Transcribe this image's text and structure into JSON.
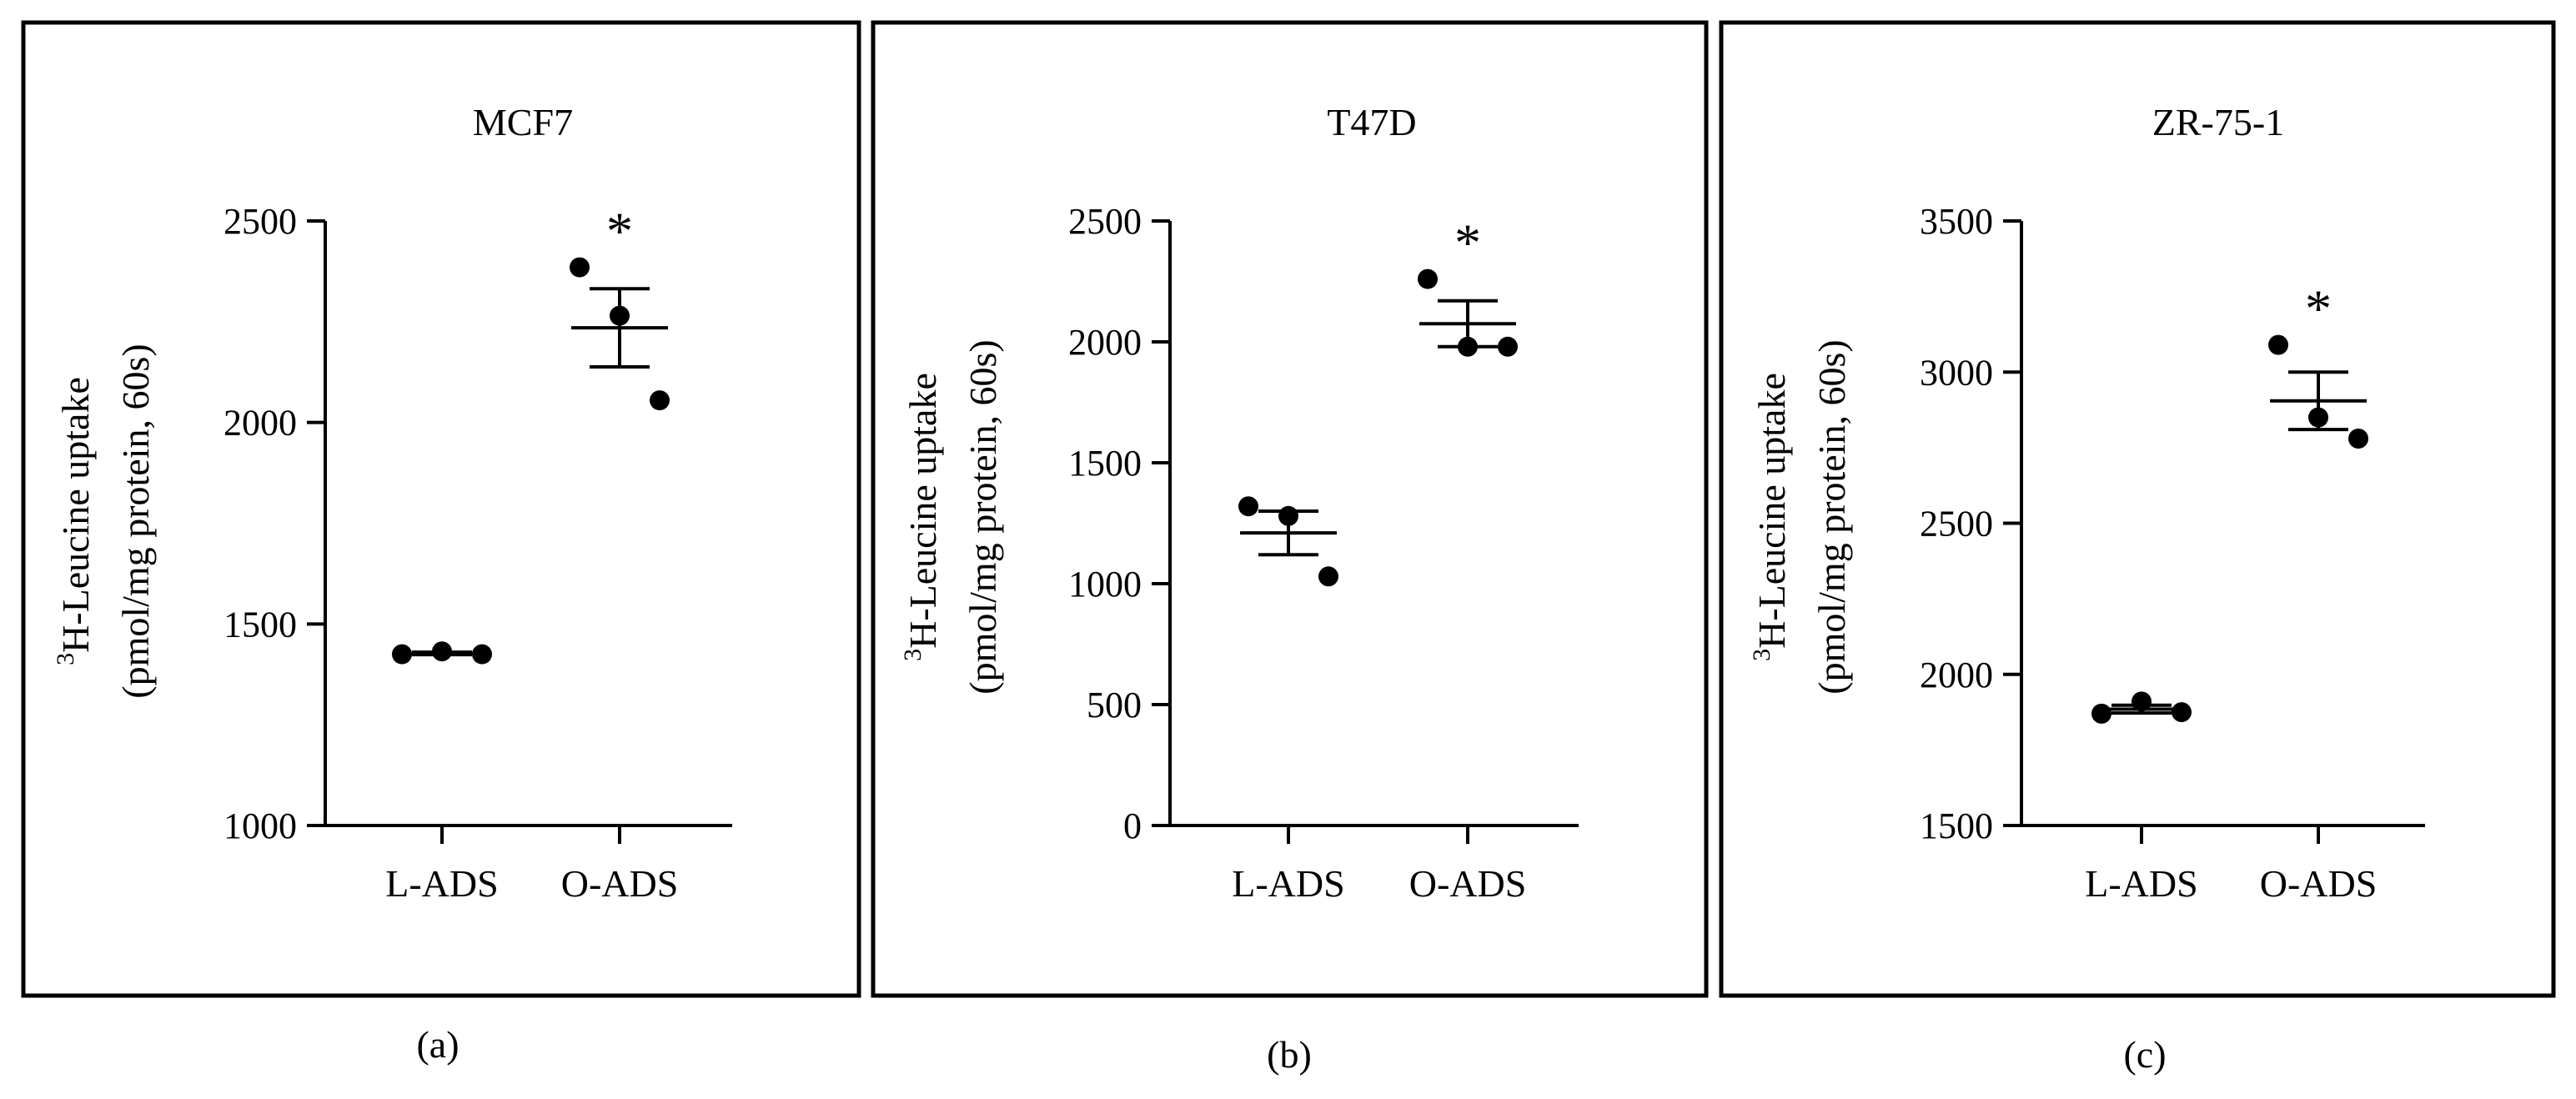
{
  "figure": {
    "panel_labels": [
      "(a)",
      "(b)",
      "(c)"
    ]
  },
  "chart_data": [
    {
      "type": "scatter",
      "title": "MCF7",
      "ylabel_sup": "3",
      "ylabel_line1": "H-Leucine uptake",
      "ylabel_line2": "(pmol/mg protein, 60s)",
      "categories": [
        "L-ADS",
        "O-ADS"
      ],
      "ylim": [
        1000,
        2500
      ],
      "yticks": [
        1000,
        1500,
        2000,
        2500
      ],
      "groups": [
        {
          "name": "L-ADS",
          "points": [
            1425,
            1432,
            1425
          ],
          "mean": 1427,
          "sem": 3,
          "significance": ""
        },
        {
          "name": "O-ADS",
          "points": [
            2385,
            2265,
            2055
          ],
          "mean": 2235,
          "sem": 97,
          "significance": "*"
        }
      ]
    },
    {
      "type": "scatter",
      "title": "T47D",
      "ylabel_sup": "3",
      "ylabel_line1": "H-Leucine uptake",
      "ylabel_line2": "(pmol/mg protein, 60s)",
      "categories": [
        "L-ADS",
        "O-ADS"
      ],
      "ylim": [
        0,
        2500
      ],
      "yticks": [
        0,
        500,
        1000,
        1500,
        2000,
        2500
      ],
      "groups": [
        {
          "name": "L-ADS",
          "points": [
            1320,
            1280,
            1030
          ],
          "mean": 1210,
          "sem": 90,
          "significance": ""
        },
        {
          "name": "O-ADS",
          "points": [
            2260,
            1980,
            1980
          ],
          "mean": 2075,
          "sem": 95,
          "significance": "*"
        }
      ]
    },
    {
      "type": "scatter",
      "title": "ZR-75-1",
      "ylabel_sup": "3",
      "ylabel_line1": "H-Leucine uptake",
      "ylabel_line2": "(pmol/mg protein, 60s)",
      "categories": [
        "L-ADS",
        "O-ADS"
      ],
      "ylim": [
        1500,
        3500
      ],
      "yticks": [
        1500,
        2000,
        2500,
        3000,
        3500
      ],
      "groups": [
        {
          "name": "L-ADS",
          "points": [
            1870,
            1910,
            1875
          ],
          "mean": 1885,
          "sem": 13,
          "significance": ""
        },
        {
          "name": "O-ADS",
          "points": [
            3090,
            2850,
            2780
          ],
          "mean": 2905,
          "sem": 95,
          "significance": "*"
        }
      ]
    }
  ]
}
